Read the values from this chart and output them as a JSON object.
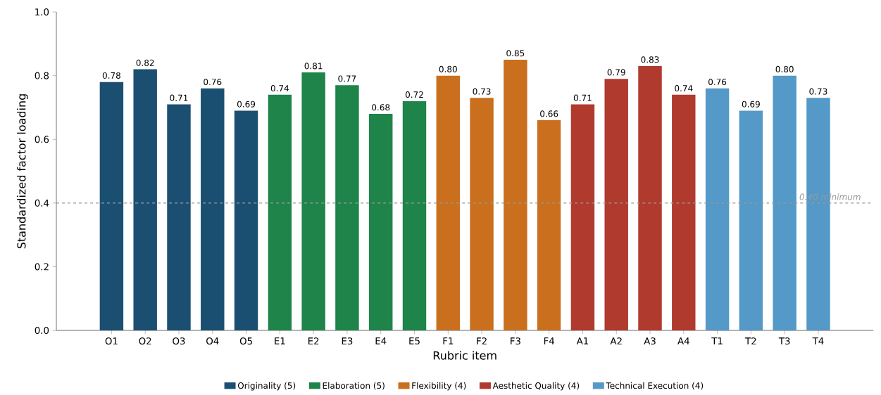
{
  "chart_data": {
    "type": "bar",
    "xlabel": "Rubric item",
    "ylabel": "Standardized factor loading",
    "categories": [
      "O1",
      "O2",
      "O3",
      "O4",
      "O5",
      "E1",
      "E2",
      "E3",
      "E4",
      "E5",
      "F1",
      "F2",
      "F3",
      "F4",
      "A1",
      "A2",
      "A3",
      "A4",
      "T1",
      "T2",
      "T3",
      "T4"
    ],
    "series": [
      {
        "name": "Originality (5)",
        "color": "#1b4f72",
        "values": [
          0.78,
          0.82,
          0.71,
          0.76,
          0.69,
          null,
          null,
          null,
          null,
          null,
          null,
          null,
          null,
          null,
          null,
          null,
          null,
          null,
          null,
          null,
          null,
          null
        ],
        "value_labels": [
          "0.78",
          "0.82",
          "0.71",
          "0.76",
          "0.69",
          null,
          null,
          null,
          null,
          null,
          null,
          null,
          null,
          null,
          null,
          null,
          null,
          null,
          null,
          null,
          null,
          null
        ]
      },
      {
        "name": "Elaboration (5)",
        "color": "#1e8449",
        "values": [
          null,
          null,
          null,
          null,
          null,
          0.74,
          0.81,
          0.77,
          0.68,
          0.72,
          null,
          null,
          null,
          null,
          null,
          null,
          null,
          null,
          null,
          null,
          null,
          null
        ],
        "value_labels": [
          null,
          null,
          null,
          null,
          null,
          "0.74",
          "0.81",
          "0.77",
          "0.68",
          "0.72",
          null,
          null,
          null,
          null,
          null,
          null,
          null,
          null,
          null,
          null,
          null,
          null
        ]
      },
      {
        "name": "Flexibility (4)",
        "color": "#ca6f1e",
        "values": [
          null,
          null,
          null,
          null,
          null,
          null,
          null,
          null,
          null,
          null,
          0.8,
          0.73,
          0.85,
          0.66,
          null,
          null,
          null,
          null,
          null,
          null,
          null,
          null
        ],
        "value_labels": [
          null,
          null,
          null,
          null,
          null,
          null,
          null,
          null,
          null,
          null,
          "0.80",
          "0.73",
          "0.85",
          "0.66",
          null,
          null,
          null,
          null,
          null,
          null,
          null,
          null
        ]
      },
      {
        "name": "Aesthetic Quality (4)",
        "color": "#b03a2e",
        "values": [
          null,
          null,
          null,
          null,
          null,
          null,
          null,
          null,
          null,
          null,
          null,
          null,
          null,
          null,
          0.71,
          0.79,
          0.83,
          0.74,
          null,
          null,
          null,
          null
        ],
        "value_labels": [
          null,
          null,
          null,
          null,
          null,
          null,
          null,
          null,
          null,
          null,
          null,
          null,
          null,
          null,
          "0.71",
          "0.79",
          "0.83",
          "0.74",
          null,
          null,
          null,
          null
        ]
      },
      {
        "name": "Technical Execution (4)",
        "color": "#5499c7",
        "values": [
          null,
          null,
          null,
          null,
          null,
          null,
          null,
          null,
          null,
          null,
          null,
          null,
          null,
          null,
          null,
          null,
          null,
          null,
          0.76,
          0.69,
          0.8,
          0.73
        ],
        "value_labels": [
          null,
          null,
          null,
          null,
          null,
          null,
          null,
          null,
          null,
          null,
          null,
          null,
          null,
          null,
          null,
          null,
          null,
          null,
          "0.76",
          "0.69",
          "0.80",
          "0.73"
        ]
      }
    ],
    "ylim": [
      0,
      1
    ],
    "yticks": [
      {
        "value": 0,
        "label": "0.0"
      },
      {
        "value": 0.2,
        "label": "0.2"
      },
      {
        "value": 0.4,
        "label": "0.4"
      },
      {
        "value": 0.6,
        "label": "0.6"
      },
      {
        "value": 0.8,
        "label": "0.8"
      },
      {
        "value": 1,
        "label": "1.0"
      }
    ],
    "ref_lines": [
      {
        "axis": "y",
        "value": 0.4,
        "label": "0.40 minimum",
        "color": "#999999",
        "line_style": "dashed"
      }
    ],
    "legend": "bottom",
    "grid": false
  }
}
